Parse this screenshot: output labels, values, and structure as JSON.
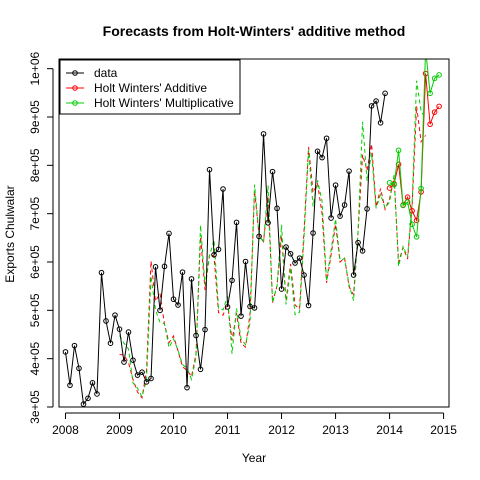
{
  "chart_data": {
    "type": "line",
    "title": "Forecasts from Holt-Winters' additive method",
    "xlabel": "Year",
    "ylabel": "Exports Chulwalar",
    "xlim": [
      2007.88,
      2015.1
    ],
    "ylim": [
      300000,
      1020000
    ],
    "x_ticks": [
      2008,
      2009,
      2010,
      2011,
      2012,
      2013,
      2014,
      2015
    ],
    "x_tick_labels": [
      "2008",
      "2009",
      "2010",
      "2011",
      "2012",
      "2013",
      "2014",
      "2015"
    ],
    "y_ticks": [
      300000,
      400000,
      500000,
      600000,
      700000,
      800000,
      900000,
      1000000
    ],
    "y_tick_labels": [
      "3e+05",
      "4e+05",
      "5e+05",
      "6e+05",
      "7e+05",
      "8e+05",
      "9e+05",
      "1e+06"
    ],
    "legend_position": "top-left",
    "legend": [
      {
        "label": "data",
        "color": "#000000"
      },
      {
        "label": "Holt Winters' Additive",
        "color": "#ff0000"
      },
      {
        "label": "Holt Winters' Multiplicative",
        "color": "#00cd00"
      }
    ],
    "start": 2008,
    "frequency": 12,
    "series": [
      {
        "name": "data",
        "color": "#000000",
        "style": "line-points",
        "values": [
          414000,
          345000,
          427000,
          380000,
          306000,
          318000,
          350000,
          327000,
          578000,
          478000,
          432000,
          490000,
          461000,
          393000,
          455000,
          397000,
          366000,
          372000,
          352000,
          359000,
          590000,
          500000,
          591000,
          659000,
          523000,
          511000,
          579000,
          340000,
          565000,
          448000,
          378000,
          460000,
          791000,
          615000,
          626000,
          751000,
          507000,
          562000,
          682000,
          488000,
          601000,
          508000,
          505000,
          653000,
          865000,
          681000,
          787000,
          711000,
          544000,
          631000,
          617000,
          598000,
          608000,
          573000,
          510000,
          660000,
          829000,
          816000,
          856000,
          691000,
          759000,
          695000,
          718000,
          788000,
          573000,
          640000,
          623000,
          710000,
          923000,
          933000,
          888000,
          949000
        ]
      },
      {
        "name": "Holt Winters' Additive",
        "color": "#ff0000",
        "style": "dashed",
        "x_start": 2009,
        "values": [
          409000,
          407000,
          392000,
          357000,
          331000,
          319000,
          375000,
          602000,
          519000,
          535000,
          471000,
          433000,
          447000,
          416000,
          383000,
          376000,
          363000,
          410000,
          652000,
          542000,
          616000,
          612000,
          495000,
          490000,
          515000,
          438000,
          494000,
          432000,
          424000,
          493000,
          748000,
          656000,
          642000,
          735000,
          516000,
          551000,
          654000,
          520000,
          596000,
          511000,
          503000,
          666000,
          838000,
          744000,
          762000,
          700000,
          557000,
          614000,
          678000,
          600000,
          608000,
          549000,
          532000,
          662000,
          822000,
          789000,
          844000,
          714000,
          752000,
          709000,
          731000,
          774000,
          600000,
          630000,
          606000,
          715000,
          922000,
          849000,
          862000
        ]
      },
      {
        "name": "Holt Winters' Additive forecast",
        "color": "#ff0000",
        "style": "line-points",
        "x_start": 2014,
        "values": [
          753000,
          762000,
          802000,
          718000,
          734000,
          706000,
          686000,
          745000,
          990000,
          885000,
          910000,
          922000
        ]
      },
      {
        "name": "Holt Winters' Multiplicative",
        "color": "#00cd00",
        "style": "dashed",
        "x_start": 2009,
        "values": [
          448000,
          432000,
          420000,
          350000,
          339000,
          321000,
          356000,
          570000,
          501000,
          475000,
          472000,
          423000,
          441000,
          417000,
          388000,
          380000,
          357000,
          404000,
          676000,
          553000,
          613000,
          646000,
          504000,
          501000,
          529000,
          410000,
          504000,
          441000,
          429000,
          474000,
          760000,
          657000,
          640000,
          758000,
          516000,
          551000,
          677000,
          512000,
          588000,
          491000,
          496000,
          652000,
          832000,
          715000,
          769000,
          726000,
          560000,
          624000,
          689000,
          604000,
          607000,
          553000,
          520000,
          665000,
          890000,
          768000,
          825000,
          711000,
          740000,
          712000,
          724000,
          780000,
          591000,
          632000,
          611000,
          720000,
          975000,
          912000,
          897000
        ]
      },
      {
        "name": "Holt Winters' Multiplicative forecast",
        "color": "#00cd00",
        "style": "line-points",
        "x_start": 2014,
        "values": [
          764000,
          760000,
          831000,
          717000,
          724000,
          678000,
          652000,
          752000,
          1040000,
          949000,
          980000,
          987000
        ]
      }
    ]
  }
}
